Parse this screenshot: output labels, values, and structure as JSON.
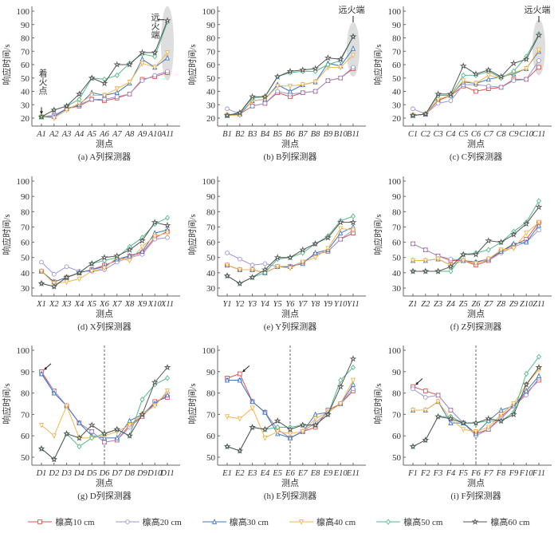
{
  "colors": {
    "10": "#d9534f",
    "20": "#9d95d6",
    "30": "#3f78c2",
    "40": "#f2b44f",
    "50": "#55b98a",
    "60": "#555555"
  },
  "legend": [
    {
      "key": "10",
      "label": "檩高10 cm",
      "marker": "square"
    },
    {
      "key": "20",
      "label": "檩高20 cm",
      "marker": "circle"
    },
    {
      "key": "30",
      "label": "檩高30 cm",
      "marker": "triangle"
    },
    {
      "key": "40",
      "label": "檩高40 cm",
      "marker": "triangle-down"
    },
    {
      "key": "50",
      "label": "檩高50 cm",
      "marker": "diamond"
    },
    {
      "key": "60",
      "label": "檩高60 cm",
      "marker": "star"
    }
  ],
  "chart_data": [
    {
      "type": "line",
      "caption": "(a) A列探测器",
      "xlabel": "测点",
      "ylabel": "响应时间/s",
      "ylim": [
        20,
        100
      ],
      "yticks": [
        20,
        30,
        40,
        50,
        60,
        70,
        80,
        90,
        100
      ],
      "categories": [
        "A1",
        "A2",
        "A3",
        "A4",
        "A5",
        "A6",
        "A7",
        "A8",
        "A9",
        "A10",
        "A11"
      ],
      "annotations": {
        "ignition": "着火点",
        "far_end": "远火端",
        "far_end_vertical": true,
        "highlight_last": true
      },
      "series": [
        {
          "key": "10",
          "values": [
            21,
            22,
            27,
            29,
            34,
            33,
            35,
            38,
            49,
            51,
            54
          ]
        },
        {
          "key": "20",
          "values": [
            21,
            22,
            27,
            30,
            34,
            34,
            36,
            38,
            48,
            52,
            55
          ]
        },
        {
          "key": "30",
          "values": [
            21,
            21,
            27,
            30,
            39,
            37,
            39,
            46,
            64,
            58,
            65
          ]
        },
        {
          "key": "40",
          "values": [
            21,
            20,
            26,
            31,
            37,
            37,
            42,
            47,
            61,
            58,
            69
          ]
        },
        {
          "key": "50",
          "values": [
            21,
            26,
            29,
            34,
            50,
            49,
            52,
            61,
            68,
            66,
            92
          ]
        },
        {
          "key": "60",
          "values": [
            21,
            26,
            29,
            38,
            50,
            46,
            60,
            60,
            69,
            69,
            93
          ]
        }
      ]
    },
    {
      "type": "line",
      "caption": "(b) B列探测器",
      "xlabel": "测点",
      "ylabel": "响应时间/s",
      "ylim": [
        20,
        100
      ],
      "yticks": [
        20,
        30,
        40,
        50,
        60,
        70,
        80,
        90,
        100
      ],
      "categories": [
        "B1",
        "B2",
        "B3",
        "B4",
        "B5",
        "B6",
        "B7",
        "B8",
        "B9",
        "B10",
        "B11"
      ],
      "annotations": {
        "far_end": "远火端",
        "highlight_last": true
      },
      "series": [
        {
          "key": "10",
          "values": [
            22,
            23,
            29,
            31,
            39,
            36,
            39,
            40,
            48,
            50,
            57
          ]
        },
        {
          "key": "20",
          "values": [
            27,
            23,
            29,
            31,
            40,
            38,
            39,
            40,
            48,
            50,
            58
          ]
        },
        {
          "key": "30",
          "values": [
            22,
            23,
            33,
            34,
            45,
            40,
            45,
            47,
            61,
            59,
            72
          ]
        },
        {
          "key": "40",
          "values": [
            22,
            22,
            33,
            34,
            44,
            44,
            45,
            47,
            58,
            58,
            67
          ]
        },
        {
          "key": "50",
          "values": [
            22,
            24,
            35,
            36,
            51,
            54,
            55,
            55,
            60,
            63,
            81
          ]
        },
        {
          "key": "60",
          "values": [
            22,
            24,
            36,
            36,
            51,
            55,
            56,
            57,
            65,
            64,
            81
          ]
        }
      ]
    },
    {
      "type": "line",
      "caption": "(c) C列探测器",
      "xlabel": "测点",
      "ylabel": "响应时间/s",
      "ylim": [
        20,
        100
      ],
      "yticks": [
        20,
        30,
        40,
        50,
        60,
        70,
        80,
        90,
        100
      ],
      "categories": [
        "C1",
        "C2",
        "C3",
        "C4",
        "C5",
        "C6",
        "C7",
        "C8",
        "C9",
        "C10",
        "C11"
      ],
      "annotations": {
        "far_end": "远火端",
        "highlight_last": true
      },
      "series": [
        {
          "key": "10",
          "values": [
            22,
            23,
            33,
            37,
            44,
            40,
            42,
            43,
            49,
            49,
            58
          ]
        },
        {
          "key": "20",
          "values": [
            27,
            23,
            31,
            33,
            45,
            45,
            44,
            43,
            48,
            49,
            63
          ]
        },
        {
          "key": "30",
          "values": [
            22,
            23,
            34,
            37,
            47,
            46,
            49,
            51,
            53,
            57,
            70
          ]
        },
        {
          "key": "40",
          "values": [
            22,
            23,
            34,
            37,
            48,
            46,
            52,
            50,
            54,
            57,
            71
          ]
        },
        {
          "key": "50",
          "values": [
            22,
            23,
            37,
            37,
            52,
            52,
            55,
            50,
            55,
            66,
            83
          ]
        },
        {
          "key": "60",
          "values": [
            22,
            23,
            38,
            38,
            59,
            53,
            56,
            51,
            61,
            64,
            82
          ]
        }
      ]
    },
    {
      "type": "line",
      "caption": "(d) X列探测器",
      "xlabel": "测点",
      "ylabel": "响应时间/s",
      "ylim": [
        30,
        100
      ],
      "yticks": [
        30,
        40,
        50,
        60,
        70,
        80,
        90,
        100
      ],
      "categories": [
        "X1",
        "X2",
        "X3",
        "X4",
        "X5",
        "X6",
        "X7",
        "X8",
        "X9",
        "X10",
        "X11"
      ],
      "series": [
        {
          "key": "10",
          "values": [
            41,
            34,
            37,
            40,
            42,
            45,
            48,
            51,
            53,
            63,
            67
          ]
        },
        {
          "key": "20",
          "values": [
            47,
            39,
            44,
            41,
            41,
            42,
            47,
            50,
            52,
            62,
            63
          ]
        },
        {
          "key": "30",
          "values": [
            41,
            34,
            37,
            40,
            42,
            44,
            49,
            51,
            54,
            66,
            68
          ]
        },
        {
          "key": "40",
          "values": [
            41,
            33,
            34,
            36,
            41,
            43,
            50,
            48,
            57,
            64,
            66
          ]
        },
        {
          "key": "50",
          "values": [
            33,
            31,
            37,
            40,
            46,
            48,
            50,
            57,
            63,
            72,
            76
          ]
        },
        {
          "key": "60",
          "values": [
            33,
            31,
            37,
            40,
            46,
            50,
            51,
            55,
            61,
            73,
            71
          ]
        }
      ]
    },
    {
      "type": "line",
      "caption": "(e) Y列探测器",
      "xlabel": "测点",
      "ylabel": "响应时间/s",
      "ylim": [
        30,
        100
      ],
      "yticks": [
        30,
        40,
        50,
        60,
        70,
        80,
        90,
        100
      ],
      "categories": [
        "Y1",
        "Y2",
        "Y3",
        "Y4",
        "Y5",
        "Y6",
        "Y7",
        "Y8",
        "Y9",
        "Y10",
        "Y11"
      ],
      "series": [
        {
          "key": "10",
          "values": [
            45,
            42,
            42,
            40,
            44,
            44,
            47,
            52,
            54,
            62,
            66
          ]
        },
        {
          "key": "20",
          "values": [
            53,
            49,
            45,
            46,
            44,
            44,
            47,
            52,
            54,
            62,
            68
          ]
        },
        {
          "key": "30",
          "values": [
            45,
            42,
            42,
            40,
            44,
            44,
            46,
            53,
            55,
            66,
            70
          ]
        },
        {
          "key": "40",
          "values": [
            45,
            42,
            42,
            40,
            44,
            43,
            47,
            50,
            56,
            69,
            68
          ]
        },
        {
          "key": "50",
          "values": [
            38,
            33,
            37,
            40,
            49,
            50,
            53,
            59,
            64,
            74,
            77
          ]
        },
        {
          "key": "60",
          "values": [
            38,
            33,
            37,
            42,
            50,
            50,
            55,
            59,
            63,
            73,
            73
          ]
        }
      ]
    },
    {
      "type": "line",
      "caption": "(f) Z列探测器",
      "xlabel": "测点",
      "ylabel": "响应时间/s",
      "ylim": [
        30,
        100
      ],
      "yticks": [
        30,
        40,
        50,
        60,
        70,
        80,
        90,
        100
      ],
      "categories": [
        "Z1",
        "Z2",
        "Z3",
        "Z4",
        "Z5",
        "Z6",
        "Z7",
        "Z8",
        "Z9",
        "Z10",
        "Z11"
      ],
      "series": [
        {
          "key": "10",
          "values": [
            59,
            55,
            51,
            48,
            48,
            45,
            48,
            54,
            58,
            62,
            73
          ]
        },
        {
          "key": "20",
          "values": [
            59,
            55,
            51,
            49,
            48,
            47,
            48,
            53,
            57,
            60,
            68
          ]
        },
        {
          "key": "30",
          "values": [
            48,
            48,
            49,
            45,
            48,
            47,
            49,
            54,
            59,
            60,
            71
          ]
        },
        {
          "key": "40",
          "values": [
            48,
            48,
            49,
            45,
            48,
            46,
            49,
            55,
            56,
            66,
            73
          ]
        },
        {
          "key": "50",
          "values": [
            41,
            41,
            41,
            41,
            52,
            53,
            55,
            60,
            67,
            73,
            87
          ]
        },
        {
          "key": "60",
          "values": [
            41,
            41,
            41,
            44,
            52,
            52,
            61,
            60,
            65,
            72,
            83
          ]
        }
      ]
    },
    {
      "type": "line",
      "caption": "(g) D列探测器",
      "xlabel": "测点",
      "ylabel": "响应时间/s",
      "ylim": [
        50,
        100
      ],
      "yticks": [
        50,
        60,
        70,
        80,
        90,
        100
      ],
      "categories": [
        "D1",
        "D2",
        "D3",
        "D4",
        "D5",
        "D6",
        "D7",
        "D8",
        "D9",
        "D10",
        "D11"
      ],
      "annotations": {
        "divider_at": "D6",
        "arrow_at": 0
      },
      "series": [
        {
          "key": "10",
          "values": [
            90,
            81,
            74,
            66,
            62,
            57,
            58,
            65,
            69,
            76,
            78
          ]
        },
        {
          "key": "20",
          "values": [
            89,
            81,
            74,
            66,
            62,
            57,
            58,
            64,
            69,
            75,
            80
          ]
        },
        {
          "key": "30",
          "values": [
            89,
            80,
            74,
            66,
            60,
            59,
            59,
            67,
            70,
            75,
            79
          ]
        },
        {
          "key": "40",
          "values": [
            65,
            60,
            74,
            59,
            59,
            60,
            62,
            65,
            70,
            74,
            81
          ]
        },
        {
          "key": "50",
          "values": [
            54,
            49,
            61,
            55,
            59,
            61,
            63,
            60,
            77,
            84,
            87
          ]
        },
        {
          "key": "60",
          "values": [
            54,
            49,
            61,
            59,
            65,
            61,
            63,
            60,
            70,
            85,
            92
          ]
        }
      ]
    },
    {
      "type": "line",
      "caption": "(h) E列探测器",
      "xlabel": "测点",
      "ylabel": "响应时间/s",
      "ylim": [
        50,
        100
      ],
      "yticks": [
        50,
        60,
        70,
        80,
        90,
        100
      ],
      "categories": [
        "E1",
        "E2",
        "E3",
        "E4",
        "E5",
        "E6",
        "E7",
        "E8",
        "E9",
        "E10",
        "E11"
      ],
      "annotations": {
        "divider_at": "E6",
        "arrow_at": 1
      },
      "series": [
        {
          "key": "10",
          "values": [
            87,
            89,
            76,
            71,
            63,
            59,
            62,
            64,
            72,
            75,
            81
          ]
        },
        {
          "key": "20",
          "values": [
            86,
            86,
            76,
            71,
            63,
            59,
            62,
            66,
            71,
            75,
            82
          ]
        },
        {
          "key": "30",
          "values": [
            86,
            86,
            76,
            71,
            61,
            59,
            62,
            70,
            71,
            75,
            84
          ]
        },
        {
          "key": "40",
          "values": [
            69,
            68,
            73,
            59,
            62,
            61,
            62,
            68,
            71,
            75,
            86
          ]
        },
        {
          "key": "50",
          "values": [
            55,
            53,
            64,
            63,
            64,
            64,
            65,
            65,
            70,
            86,
            92
          ]
        },
        {
          "key": "60",
          "values": [
            55,
            53,
            64,
            63,
            67,
            63,
            65,
            65,
            70,
            83,
            96
          ]
        }
      ]
    },
    {
      "type": "line",
      "caption": "(i) F列探测器",
      "xlabel": "测点",
      "ylabel": "响应时间/s",
      "ylim": [
        50,
        100
      ],
      "yticks": [
        50,
        60,
        70,
        80,
        90,
        100
      ],
      "categories": [
        "F1",
        "F2",
        "F3",
        "F4",
        "F5",
        "F6",
        "F7",
        "F8",
        "F9",
        "F10",
        "F11"
      ],
      "annotations": {
        "divider_at": "F6",
        "arrow_at": 0
      },
      "series": [
        {
          "key": "10",
          "values": [
            83,
            81,
            79,
            72,
            66,
            61,
            63,
            69,
            74,
            80,
            86
          ]
        },
        {
          "key": "20",
          "values": [
            82,
            78,
            79,
            72,
            66,
            60,
            63,
            68,
            74,
            79,
            87
          ]
        },
        {
          "key": "30",
          "values": [
            72,
            72,
            76,
            66,
            66,
            61,
            67,
            72,
            74,
            81,
            88
          ]
        },
        {
          "key": "40",
          "values": [
            72,
            72,
            76,
            68,
            63,
            62,
            64,
            70,
            75,
            84,
            91
          ]
        },
        {
          "key": "50",
          "values": [
            55,
            58,
            69,
            69,
            66,
            66,
            67,
            67,
            71,
            89,
            97
          ]
        },
        {
          "key": "60",
          "values": [
            55,
            58,
            69,
            68,
            66,
            66,
            68,
            67,
            70,
            84,
            92
          ]
        }
      ]
    }
  ]
}
